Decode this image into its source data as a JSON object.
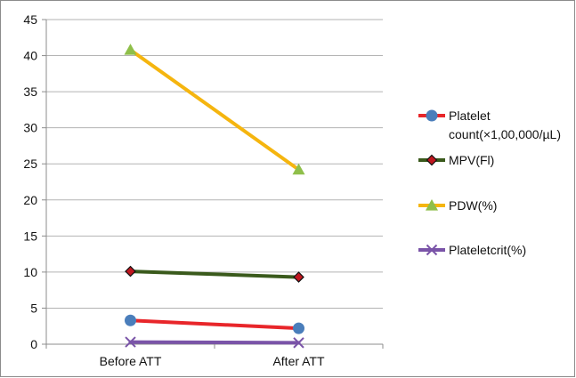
{
  "chart_data": {
    "type": "line",
    "categories": [
      "Before ATT",
      "After ATT"
    ],
    "ylim": [
      0,
      45
    ],
    "yticks": [
      0,
      5,
      10,
      15,
      20,
      25,
      30,
      35,
      40,
      45
    ],
    "grid": true,
    "legend_position": "right",
    "series": [
      {
        "name_lines": [
          "Platelet",
          "count(×1,00,000/µL)"
        ],
        "values": [
          3.3,
          2.2
        ],
        "color": "#e8262a",
        "marker": "circle",
        "marker_color": "#4a7ebb"
      },
      {
        "name_lines": [
          "MPV(Fl)"
        ],
        "values": [
          10.1,
          9.3
        ],
        "color": "#3a5a1c",
        "marker": "diamond",
        "marker_color": "#c0171f"
      },
      {
        "name_lines": [
          "PDW(%)"
        ],
        "values": [
          40.8,
          24.2
        ],
        "color": "#f5b50f",
        "marker": "triangle",
        "marker_color": "#8fbf4a"
      },
      {
        "name_lines": [
          "Plateletcrit(%)"
        ],
        "values": [
          0.3,
          0.2
        ],
        "color": "#7a54a8",
        "marker": "x",
        "marker_color": "#7a54a8"
      }
    ]
  }
}
